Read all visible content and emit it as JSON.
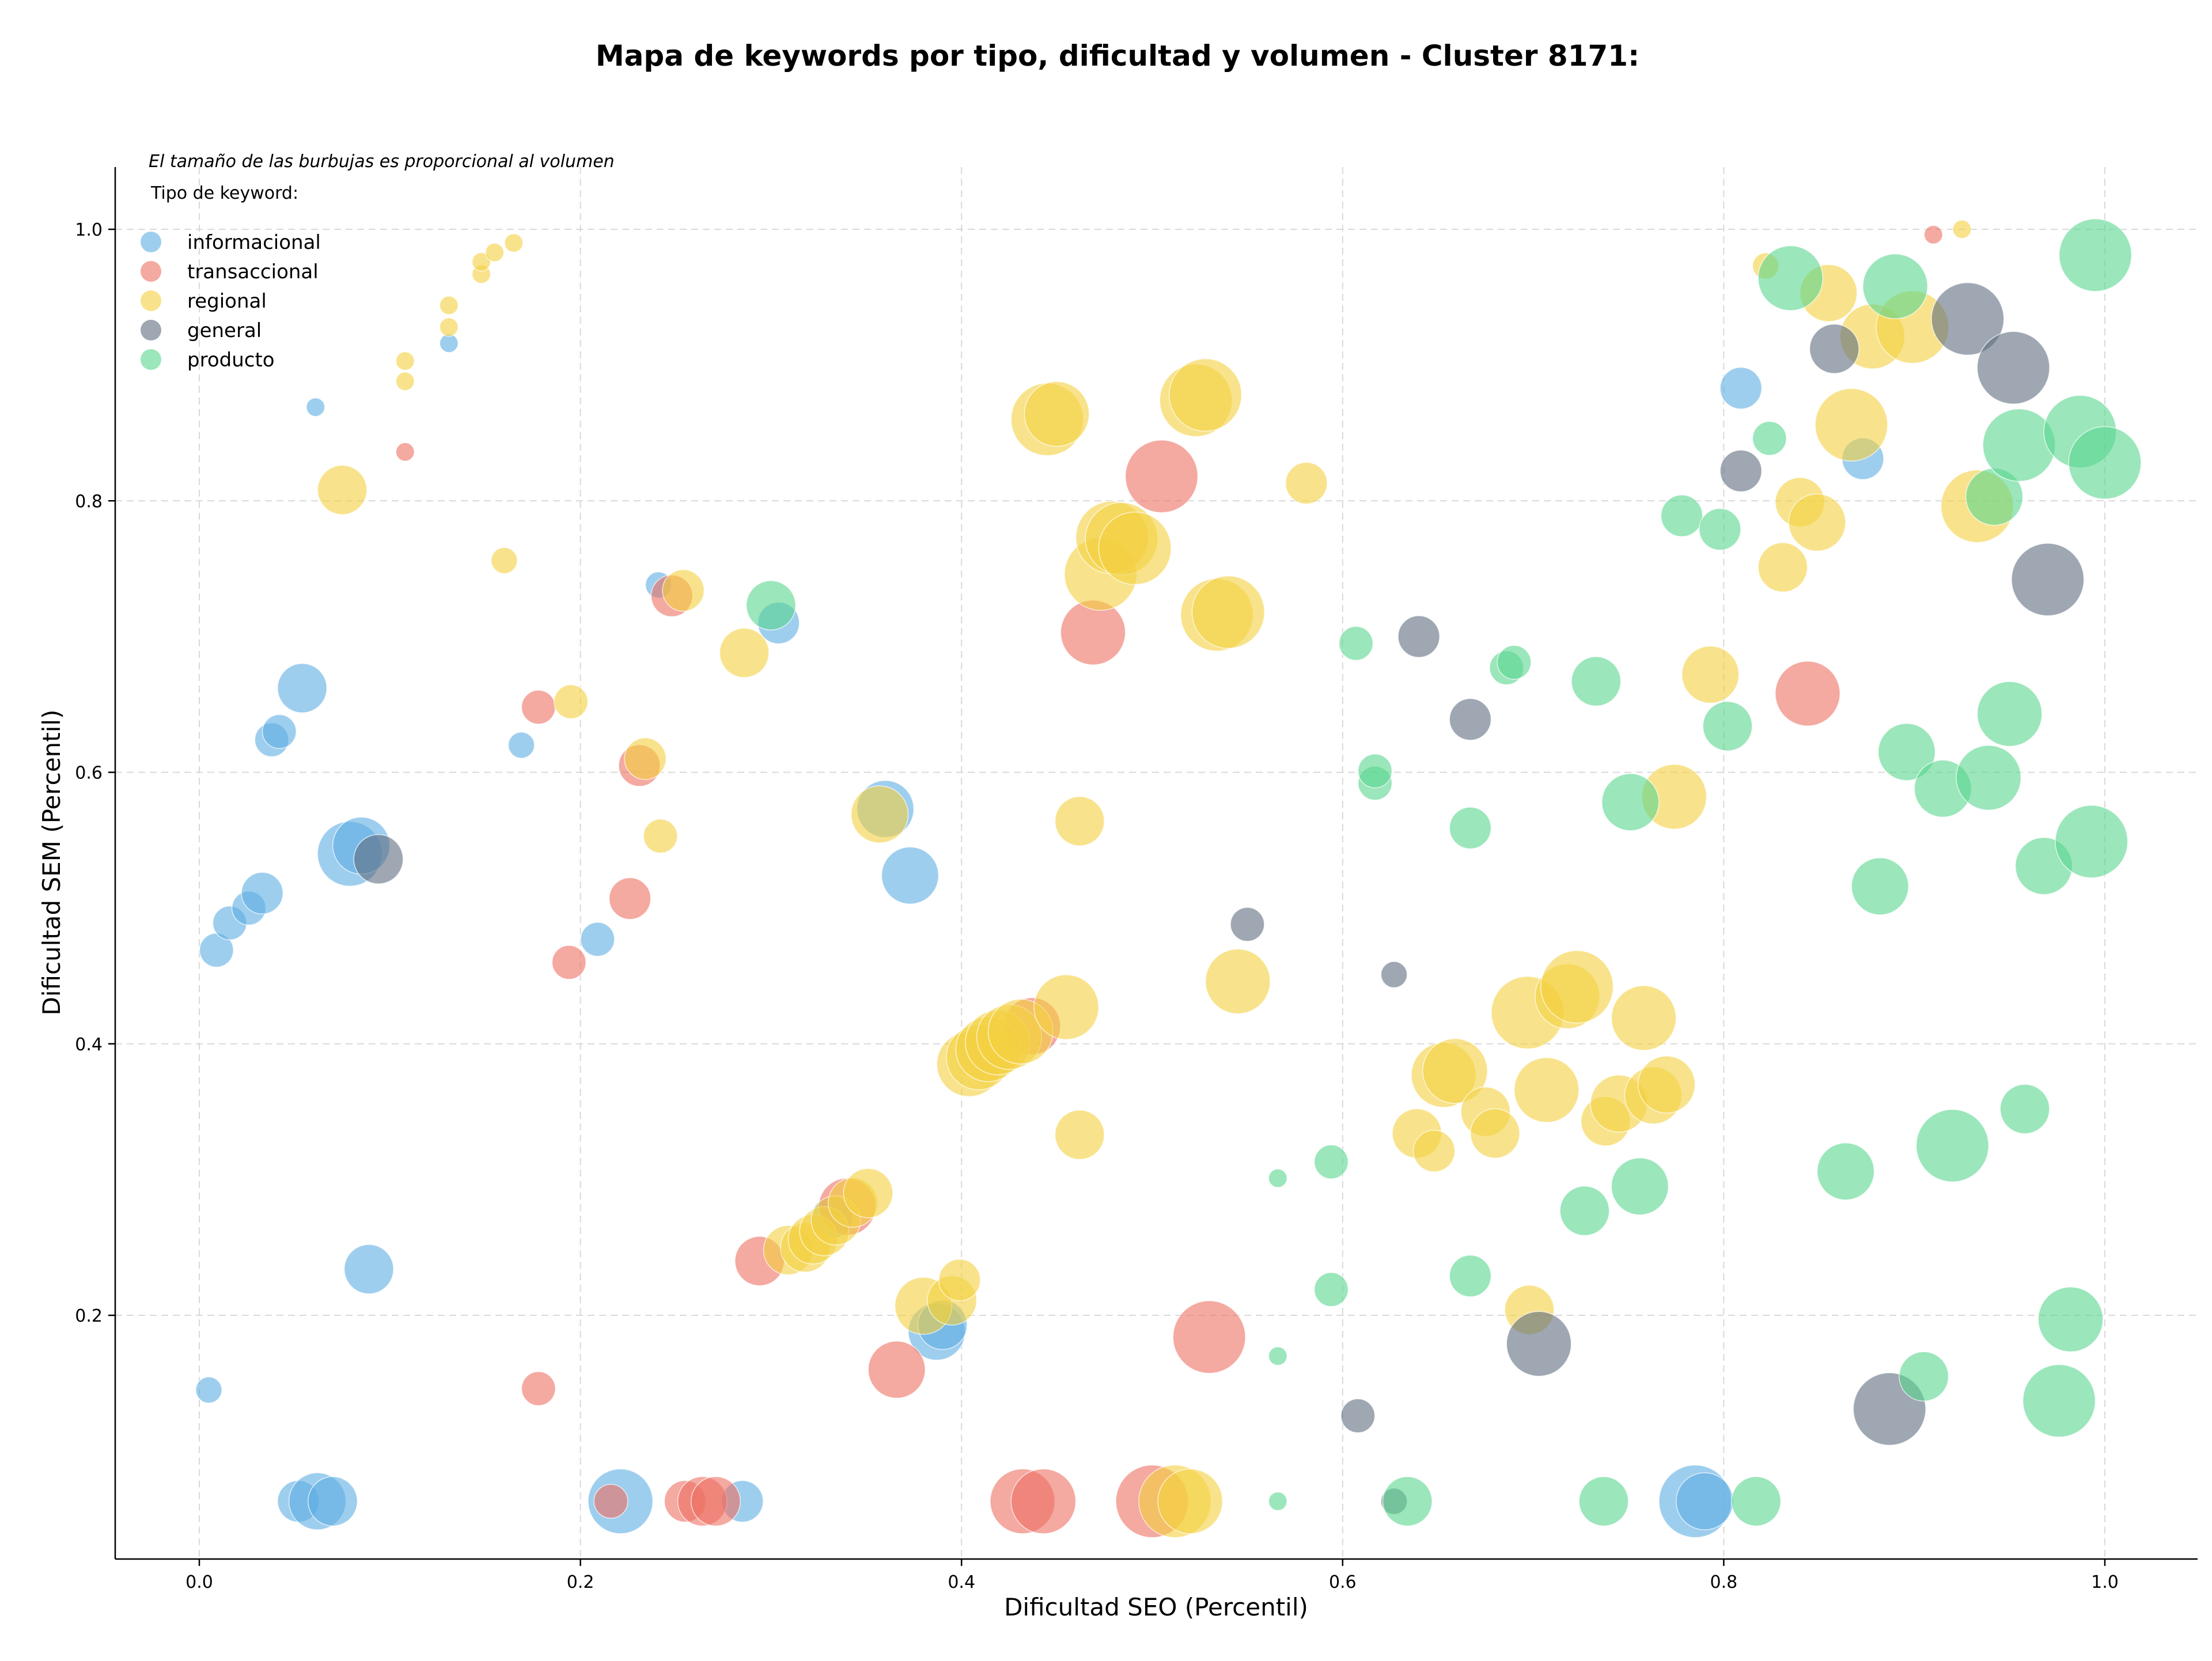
{
  "chart_data": {
    "type": "scatter",
    "title": "Mapa de keywords por tipo, dificultad y volumen - Cluster 8171:",
    "xlabel": "Dificultad SEO (Percentil)",
    "ylabel": "Dificultad SEM (Percentil)",
    "xlim": [
      -0.045,
      1.05
    ],
    "ylim": [
      0.025,
      1.05
    ],
    "xticks": [
      0.0,
      0.2,
      0.4,
      0.6,
      0.8,
      1.0
    ],
    "xtick_labels": [
      "0.0",
      "0.2",
      "0.4",
      "0.6",
      "0.8",
      "1.0"
    ],
    "yticks": [
      0.2,
      0.4,
      0.6,
      0.8,
      1.0
    ],
    "ytick_labels": [
      "0.2",
      "0.4",
      "0.6",
      "0.8",
      "1.0"
    ],
    "grid": true,
    "annotation": "El tamaño de las burbujas es proporcional al volumen",
    "legend": {
      "title": "Tipo de keyword:",
      "position": "top-left",
      "entries": [
        "informacional",
        "transaccional",
        "regional",
        "general",
        "producto"
      ]
    },
    "colors": {
      "informacional": "#5DADE2",
      "transaccional": "#EC7063",
      "regional": "#F4D03F",
      "general": "#5D6D7E",
      "producto": "#58D68D"
    },
    "series": [
      {
        "name": "informacional",
        "points": [
          [
            0.005,
            0.145,
            4
          ],
          [
            0.009,
            0.469,
            5
          ],
          [
            0.016,
            0.489,
            5
          ],
          [
            0.026,
            0.5,
            5
          ],
          [
            0.033,
            0.511,
            6
          ],
          [
            0.038,
            0.624,
            5
          ],
          [
            0.042,
            0.63,
            5
          ],
          [
            0.054,
            0.662,
            7
          ],
          [
            0.061,
            0.869,
            3
          ],
          [
            0.089,
            0.234,
            7
          ],
          [
            0.079,
            0.54,
            9
          ],
          [
            0.085,
            0.546,
            8
          ],
          [
            0.052,
            0.063,
            6
          ],
          [
            0.062,
            0.063,
            8
          ],
          [
            0.07,
            0.063,
            7
          ],
          [
            0.131,
            0.916,
            3
          ],
          [
            0.169,
            0.62,
            4
          ],
          [
            0.209,
            0.477,
            5
          ],
          [
            0.221,
            0.063,
            9
          ],
          [
            0.241,
            0.738,
            4
          ],
          [
            0.285,
            0.063,
            6
          ],
          [
            0.304,
            0.71,
            6
          ],
          [
            0.36,
            0.573,
            8
          ],
          [
            0.373,
            0.524,
            8
          ],
          [
            0.387,
            0.188,
            8
          ],
          [
            0.39,
            0.193,
            7
          ],
          [
            0.332,
            0.272,
            6
          ],
          [
            0.809,
            0.883,
            6
          ],
          [
            0.873,
            0.831,
            6
          ],
          [
            0.785,
            0.063,
            10
          ],
          [
            0.79,
            0.063,
            8
          ]
        ]
      },
      {
        "name": "transaccional",
        "points": [
          [
            0.108,
            0.836,
            3
          ],
          [
            0.178,
            0.648,
            5
          ],
          [
            0.178,
            0.146,
            5
          ],
          [
            0.194,
            0.46,
            5
          ],
          [
            0.216,
            0.063,
            5
          ],
          [
            0.226,
            0.507,
            6
          ],
          [
            0.231,
            0.605,
            6
          ],
          [
            0.248,
            0.73,
            6
          ],
          [
            0.255,
            0.063,
            6
          ],
          [
            0.264,
            0.063,
            7
          ],
          [
            0.271,
            0.063,
            7
          ],
          [
            0.294,
            0.24,
            7
          ],
          [
            0.34,
            0.28,
            8
          ],
          [
            0.366,
            0.16,
            8
          ],
          [
            0.437,
            0.413,
            8
          ],
          [
            0.432,
            0.063,
            9
          ],
          [
            0.443,
            0.063,
            9
          ],
          [
            0.469,
            0.703,
            9
          ],
          [
            0.505,
            0.818,
            10
          ],
          [
            0.5,
            0.063,
            10
          ],
          [
            0.53,
            0.184,
            10
          ],
          [
            0.844,
            0.658,
            9
          ],
          [
            0.91,
            0.996,
            3
          ]
        ]
      },
      {
        "name": "regional",
        "points": [
          [
            0.075,
            0.808,
            7
          ],
          [
            0.108,
            0.888,
            3
          ],
          [
            0.108,
            0.903,
            3
          ],
          [
            0.131,
            0.928,
            3
          ],
          [
            0.131,
            0.944,
            3
          ],
          [
            0.148,
            0.967,
            3
          ],
          [
            0.148,
            0.976,
            3
          ],
          [
            0.155,
            0.983,
            3
          ],
          [
            0.165,
            0.99,
            3
          ],
          [
            0.16,
            0.756,
            4
          ],
          [
            0.195,
            0.652,
            5
          ],
          [
            0.234,
            0.61,
            6
          ],
          [
            0.242,
            0.553,
            5
          ],
          [
            0.254,
            0.734,
            6
          ],
          [
            0.286,
            0.688,
            7
          ],
          [
            0.309,
            0.248,
            7
          ],
          [
            0.318,
            0.25,
            7
          ],
          [
            0.322,
            0.256,
            7
          ],
          [
            0.328,
            0.262,
            7
          ],
          [
            0.334,
            0.27,
            7
          ],
          [
            0.343,
            0.283,
            7
          ],
          [
            0.351,
            0.29,
            7
          ],
          [
            0.357,
            0.569,
            8
          ],
          [
            0.38,
            0.207,
            8
          ],
          [
            0.395,
            0.211,
            7
          ],
          [
            0.399,
            0.226,
            6
          ],
          [
            0.404,
            0.385,
            9
          ],
          [
            0.409,
            0.39,
            9
          ],
          [
            0.414,
            0.396,
            9
          ],
          [
            0.419,
            0.401,
            9
          ],
          [
            0.425,
            0.405,
            9
          ],
          [
            0.431,
            0.409,
            9
          ],
          [
            0.455,
            0.427,
            9
          ],
          [
            0.445,
            0.86,
            10
          ],
          [
            0.45,
            0.864,
            9
          ],
          [
            0.462,
            0.564,
            7
          ],
          [
            0.462,
            0.333,
            7
          ],
          [
            0.473,
            0.746,
            10
          ],
          [
            0.479,
            0.773,
            10
          ],
          [
            0.484,
            0.772,
            10
          ],
          [
            0.491,
            0.765,
            10
          ],
          [
            0.512,
            0.063,
            10
          ],
          [
            0.52,
            0.063,
            9
          ],
          [
            0.523,
            0.874,
            10
          ],
          [
            0.528,
            0.878,
            10
          ],
          [
            0.534,
            0.716,
            10
          ],
          [
            0.54,
            0.718,
            10
          ],
          [
            0.545,
            0.446,
            9
          ],
          [
            0.581,
            0.813,
            6
          ],
          [
            0.639,
            0.334,
            7
          ],
          [
            0.648,
            0.321,
            6
          ],
          [
            0.653,
            0.377,
            9
          ],
          [
            0.659,
            0.38,
            9
          ],
          [
            0.675,
            0.35,
            7
          ],
          [
            0.68,
            0.334,
            7
          ],
          [
            0.697,
            0.423,
            10
          ],
          [
            0.698,
            0.204,
            7
          ],
          [
            0.707,
            0.366,
            9
          ],
          [
            0.718,
            0.435,
            9
          ],
          [
            0.723,
            0.442,
            10
          ],
          [
            0.738,
            0.343,
            7
          ],
          [
            0.745,
            0.356,
            8
          ],
          [
            0.758,
            0.419,
            9
          ],
          [
            0.763,
            0.362,
            8
          ],
          [
            0.77,
            0.37,
            8
          ],
          [
            0.774,
            0.582,
            9
          ],
          [
            0.793,
            0.672,
            8
          ],
          [
            0.822,
            0.973,
            4
          ],
          [
            0.831,
            0.751,
            7
          ],
          [
            0.84,
            0.799,
            7
          ],
          [
            0.849,
            0.784,
            8
          ],
          [
            0.855,
            0.953,
            8
          ],
          [
            0.867,
            0.856,
            10
          ],
          [
            0.878,
            0.921,
            9
          ],
          [
            0.899,
            0.928,
            10
          ],
          [
            0.933,
            0.796,
            10
          ],
          [
            0.925,
            1.0,
            3
          ]
        ]
      },
      {
        "name": "general",
        "points": [
          [
            0.094,
            0.536,
            7
          ],
          [
            0.55,
            0.488,
            5
          ],
          [
            0.608,
            0.126,
            5
          ],
          [
            0.627,
            0.451,
            4
          ],
          [
            0.627,
            0.063,
            4
          ],
          [
            0.64,
            0.7,
            6
          ],
          [
            0.667,
            0.639,
            6
          ],
          [
            0.703,
            0.179,
            9
          ],
          [
            0.809,
            0.822,
            6
          ],
          [
            0.858,
            0.912,
            7
          ],
          [
            0.887,
            0.131,
            10
          ],
          [
            0.928,
            0.934,
            10
          ],
          [
            0.952,
            0.898,
            10
          ],
          [
            0.97,
            0.742,
            10
          ]
        ]
      },
      {
        "name": "producto",
        "points": [
          [
            0.3,
            0.723,
            7
          ],
          [
            0.566,
            0.301,
            3
          ],
          [
            0.566,
            0.17,
            3
          ],
          [
            0.566,
            0.063,
            3
          ],
          [
            0.594,
            0.313,
            5
          ],
          [
            0.594,
            0.219,
            5
          ],
          [
            0.607,
            0.695,
            5
          ],
          [
            0.617,
            0.592,
            5
          ],
          [
            0.617,
            0.601,
            5
          ],
          [
            0.634,
            0.063,
            7
          ],
          [
            0.667,
            0.559,
            6
          ],
          [
            0.667,
            0.229,
            6
          ],
          [
            0.686,
            0.677,
            5
          ],
          [
            0.69,
            0.681,
            5
          ],
          [
            0.733,
            0.667,
            7
          ],
          [
            0.727,
            0.277,
            7
          ],
          [
            0.737,
            0.063,
            7
          ],
          [
            0.751,
            0.578,
            8
          ],
          [
            0.756,
            0.295,
            8
          ],
          [
            0.778,
            0.789,
            6
          ],
          [
            0.798,
            0.779,
            6
          ],
          [
            0.802,
            0.634,
            7
          ],
          [
            0.817,
            0.063,
            7
          ],
          [
            0.824,
            0.846,
            5
          ],
          [
            0.835,
            0.964,
            9
          ],
          [
            0.864,
            0.306,
            8
          ],
          [
            0.882,
            0.516,
            8
          ],
          [
            0.89,
            0.958,
            9
          ],
          [
            0.896,
            0.615,
            8
          ],
          [
            0.905,
            0.155,
            7
          ],
          [
            0.915,
            0.588,
            8
          ],
          [
            0.92,
            0.325,
            10
          ],
          [
            0.939,
            0.596,
            9
          ],
          [
            0.942,
            0.803,
            8
          ],
          [
            0.95,
            0.643,
            9
          ],
          [
            0.955,
            0.841,
            10
          ],
          [
            0.958,
            0.352,
            7
          ],
          [
            0.968,
            0.531,
            8
          ],
          [
            0.976,
            0.137,
            10
          ],
          [
            0.982,
            0.197,
            9
          ],
          [
            0.987,
            0.851,
            10
          ],
          [
            0.993,
            0.549,
            10
          ],
          [
            0.995,
            0.981,
            10
          ],
          [
            1.0,
            0.828,
            10
          ]
        ]
      }
    ]
  }
}
